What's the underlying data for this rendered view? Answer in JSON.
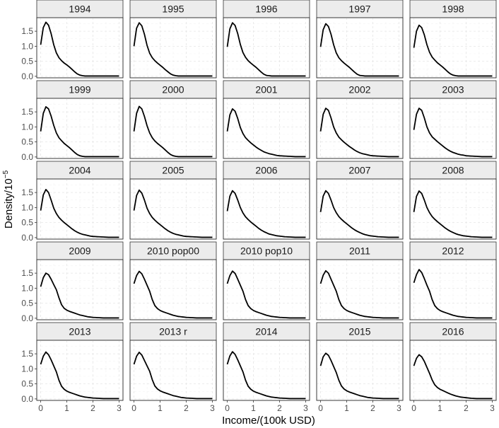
{
  "chart_data": {
    "type": "line",
    "layout": "facet-grid 5x5",
    "xlabel": "Income/(100k USD)",
    "ylabel_base": "Density/10",
    "ylabel_exponent": "−5",
    "xlim": [
      -0.15,
      3.15
    ],
    "ylim": [
      -0.05,
      1.95
    ],
    "x_ticks": [
      0,
      1,
      2,
      3
    ],
    "y_ticks": [
      0.0,
      0.5,
      1.0,
      1.5
    ],
    "y_tick_labels": [
      "0.0",
      "0.5",
      "1.0",
      "1.5"
    ],
    "grid": true,
    "x": [
      0.0,
      0.1,
      0.2,
      0.3,
      0.4,
      0.5,
      0.6,
      0.7,
      0.8,
      0.9,
      1.0,
      1.1,
      1.2,
      1.3,
      1.4,
      1.5,
      1.6,
      1.7,
      1.8,
      1.9,
      2.0,
      2.2,
      2.4,
      2.6,
      2.8,
      3.0
    ],
    "panels": [
      {
        "label": "1994",
        "values": [
          1.05,
          1.62,
          1.8,
          1.7,
          1.42,
          1.05,
          0.78,
          0.62,
          0.52,
          0.44,
          0.38,
          0.31,
          0.23,
          0.15,
          0.08,
          0.04,
          0.02,
          0.01,
          0.01,
          0.01,
          0.01,
          0.01,
          0.01,
          0.01,
          0.01,
          0.01
        ]
      },
      {
        "label": "1995",
        "values": [
          1.0,
          1.6,
          1.78,
          1.68,
          1.4,
          1.03,
          0.77,
          0.62,
          0.52,
          0.44,
          0.37,
          0.3,
          0.22,
          0.15,
          0.08,
          0.04,
          0.02,
          0.01,
          0.01,
          0.01,
          0.01,
          0.01,
          0.01,
          0.01,
          0.01,
          0.01
        ]
      },
      {
        "label": "1996",
        "values": [
          0.98,
          1.58,
          1.78,
          1.69,
          1.42,
          1.06,
          0.79,
          0.63,
          0.52,
          0.44,
          0.37,
          0.3,
          0.22,
          0.14,
          0.07,
          0.03,
          0.02,
          0.01,
          0.01,
          0.01,
          0.01,
          0.01,
          0.01,
          0.01,
          0.01,
          0.01
        ]
      },
      {
        "label": "1997",
        "values": [
          0.98,
          1.55,
          1.75,
          1.66,
          1.4,
          1.05,
          0.78,
          0.62,
          0.52,
          0.44,
          0.37,
          0.3,
          0.22,
          0.14,
          0.07,
          0.03,
          0.02,
          0.01,
          0.01,
          0.01,
          0.01,
          0.01,
          0.01,
          0.01,
          0.01,
          0.01
        ]
      },
      {
        "label": "1998",
        "values": [
          0.95,
          1.5,
          1.7,
          1.62,
          1.38,
          1.05,
          0.8,
          0.64,
          0.54,
          0.45,
          0.38,
          0.31,
          0.23,
          0.15,
          0.08,
          0.04,
          0.02,
          0.01,
          0.01,
          0.01,
          0.01,
          0.01,
          0.01,
          0.01,
          0.01,
          0.01
        ]
      },
      {
        "label": "1999",
        "values": [
          0.85,
          1.45,
          1.67,
          1.6,
          1.36,
          1.05,
          0.8,
          0.64,
          0.54,
          0.45,
          0.38,
          0.31,
          0.23,
          0.15,
          0.08,
          0.04,
          0.02,
          0.01,
          0.01,
          0.01,
          0.01,
          0.01,
          0.01,
          0.01,
          0.01,
          0.01
        ]
      },
      {
        "label": "2000",
        "values": [
          0.85,
          1.45,
          1.68,
          1.6,
          1.35,
          1.04,
          0.8,
          0.64,
          0.53,
          0.45,
          0.38,
          0.31,
          0.23,
          0.15,
          0.08,
          0.04,
          0.02,
          0.01,
          0.01,
          0.01,
          0.01,
          0.01,
          0.01,
          0.01,
          0.01,
          0.01
        ]
      },
      {
        "label": "2001",
        "values": [
          0.85,
          1.4,
          1.6,
          1.52,
          1.28,
          0.98,
          0.78,
          0.64,
          0.55,
          0.47,
          0.4,
          0.33,
          0.27,
          0.22,
          0.17,
          0.14,
          0.11,
          0.09,
          0.07,
          0.05,
          0.04,
          0.03,
          0.02,
          0.01,
          0.01,
          0.01
        ]
      },
      {
        "label": "2002",
        "values": [
          0.85,
          1.42,
          1.62,
          1.55,
          1.3,
          1.0,
          0.8,
          0.66,
          0.57,
          0.49,
          0.42,
          0.35,
          0.29,
          0.23,
          0.18,
          0.14,
          0.11,
          0.09,
          0.07,
          0.05,
          0.04,
          0.03,
          0.02,
          0.01,
          0.01,
          0.01
        ]
      },
      {
        "label": "2003",
        "values": [
          0.9,
          1.42,
          1.62,
          1.55,
          1.3,
          1.0,
          0.8,
          0.67,
          0.59,
          0.51,
          0.44,
          0.37,
          0.3,
          0.24,
          0.19,
          0.15,
          0.12,
          0.09,
          0.07,
          0.06,
          0.04,
          0.03,
          0.02,
          0.01,
          0.01,
          0.01
        ]
      },
      {
        "label": "2004",
        "values": [
          0.9,
          1.42,
          1.6,
          1.5,
          1.25,
          0.98,
          0.8,
          0.67,
          0.58,
          0.5,
          0.43,
          0.36,
          0.29,
          0.23,
          0.18,
          0.14,
          0.11,
          0.09,
          0.07,
          0.05,
          0.04,
          0.03,
          0.02,
          0.01,
          0.01,
          0.01
        ]
      },
      {
        "label": "2005",
        "values": [
          0.9,
          1.4,
          1.58,
          1.48,
          1.25,
          0.98,
          0.8,
          0.67,
          0.58,
          0.5,
          0.43,
          0.36,
          0.29,
          0.23,
          0.18,
          0.14,
          0.11,
          0.09,
          0.07,
          0.05,
          0.04,
          0.03,
          0.02,
          0.01,
          0.01,
          0.01
        ]
      },
      {
        "label": "2006",
        "values": [
          0.88,
          1.38,
          1.56,
          1.47,
          1.25,
          1.0,
          0.82,
          0.69,
          0.6,
          0.52,
          0.45,
          0.38,
          0.31,
          0.25,
          0.2,
          0.16,
          0.12,
          0.1,
          0.08,
          0.06,
          0.05,
          0.03,
          0.02,
          0.01,
          0.01,
          0.01
        ]
      },
      {
        "label": "2007",
        "values": [
          0.85,
          1.38,
          1.56,
          1.47,
          1.25,
          1.0,
          0.83,
          0.7,
          0.61,
          0.53,
          0.46,
          0.39,
          0.32,
          0.26,
          0.21,
          0.17,
          0.13,
          0.1,
          0.08,
          0.06,
          0.05,
          0.03,
          0.02,
          0.01,
          0.01,
          0.01
        ]
      },
      {
        "label": "2008",
        "values": [
          0.85,
          1.37,
          1.55,
          1.47,
          1.25,
          1.0,
          0.83,
          0.7,
          0.61,
          0.53,
          0.46,
          0.39,
          0.32,
          0.26,
          0.21,
          0.17,
          0.13,
          0.1,
          0.08,
          0.06,
          0.05,
          0.03,
          0.02,
          0.01,
          0.01,
          0.01
        ]
      },
      {
        "label": "2009",
        "values": [
          1.05,
          1.35,
          1.5,
          1.45,
          1.3,
          1.12,
          0.95,
          0.68,
          0.45,
          0.33,
          0.27,
          0.23,
          0.2,
          0.17,
          0.14,
          0.11,
          0.09,
          0.07,
          0.05,
          0.04,
          0.03,
          0.02,
          0.01,
          0.01,
          0.01,
          0.01
        ]
      },
      {
        "label": "2010 pop00",
        "values": [
          1.15,
          1.42,
          1.56,
          1.48,
          1.3,
          1.1,
          0.9,
          0.62,
          0.42,
          0.32,
          0.26,
          0.22,
          0.19,
          0.16,
          0.13,
          0.1,
          0.08,
          0.06,
          0.05,
          0.04,
          0.03,
          0.02,
          0.01,
          0.01,
          0.01,
          0.01
        ]
      },
      {
        "label": "2010 pop10",
        "values": [
          1.15,
          1.42,
          1.57,
          1.49,
          1.3,
          1.1,
          0.9,
          0.62,
          0.42,
          0.32,
          0.26,
          0.22,
          0.19,
          0.16,
          0.13,
          0.1,
          0.08,
          0.06,
          0.05,
          0.04,
          0.03,
          0.02,
          0.01,
          0.01,
          0.01,
          0.01
        ]
      },
      {
        "label": "2011",
        "values": [
          1.15,
          1.43,
          1.58,
          1.5,
          1.3,
          1.1,
          0.9,
          0.62,
          0.42,
          0.32,
          0.26,
          0.22,
          0.19,
          0.16,
          0.13,
          0.1,
          0.08,
          0.06,
          0.05,
          0.04,
          0.03,
          0.02,
          0.01,
          0.01,
          0.01,
          0.01
        ]
      },
      {
        "label": "2012",
        "values": [
          1.18,
          1.45,
          1.62,
          1.52,
          1.32,
          1.1,
          0.9,
          0.62,
          0.42,
          0.32,
          0.26,
          0.22,
          0.19,
          0.16,
          0.13,
          0.1,
          0.08,
          0.06,
          0.05,
          0.04,
          0.03,
          0.02,
          0.01,
          0.01,
          0.01,
          0.01
        ]
      },
      {
        "label": "2013",
        "values": [
          1.15,
          1.42,
          1.56,
          1.47,
          1.3,
          1.1,
          0.9,
          0.62,
          0.42,
          0.32,
          0.26,
          0.22,
          0.19,
          0.16,
          0.13,
          0.1,
          0.08,
          0.06,
          0.05,
          0.04,
          0.03,
          0.02,
          0.01,
          0.01,
          0.01,
          0.01
        ]
      },
      {
        "label": "2013 r",
        "values": [
          1.15,
          1.42,
          1.55,
          1.46,
          1.28,
          1.1,
          0.92,
          0.64,
          0.43,
          0.33,
          0.27,
          0.23,
          0.2,
          0.17,
          0.14,
          0.11,
          0.09,
          0.07,
          0.05,
          0.04,
          0.03,
          0.02,
          0.01,
          0.01,
          0.01,
          0.01
        ]
      },
      {
        "label": "2014",
        "values": [
          1.15,
          1.43,
          1.57,
          1.48,
          1.3,
          1.1,
          0.9,
          0.62,
          0.42,
          0.32,
          0.26,
          0.22,
          0.19,
          0.16,
          0.13,
          0.1,
          0.08,
          0.06,
          0.05,
          0.04,
          0.03,
          0.02,
          0.01,
          0.01,
          0.01,
          0.01
        ]
      },
      {
        "label": "2015",
        "values": [
          1.1,
          1.4,
          1.52,
          1.45,
          1.28,
          1.08,
          0.88,
          0.62,
          0.43,
          0.33,
          0.27,
          0.23,
          0.2,
          0.17,
          0.14,
          0.11,
          0.09,
          0.07,
          0.05,
          0.04,
          0.03,
          0.02,
          0.01,
          0.01,
          0.01,
          0.01
        ]
      },
      {
        "label": "2016",
        "values": [
          1.1,
          1.35,
          1.47,
          1.4,
          1.25,
          1.05,
          0.85,
          0.63,
          0.47,
          0.38,
          0.32,
          0.28,
          0.24,
          0.2,
          0.16,
          0.13,
          0.1,
          0.08,
          0.06,
          0.05,
          0.04,
          0.02,
          0.01,
          0.01,
          0.01,
          0.01
        ]
      }
    ]
  }
}
